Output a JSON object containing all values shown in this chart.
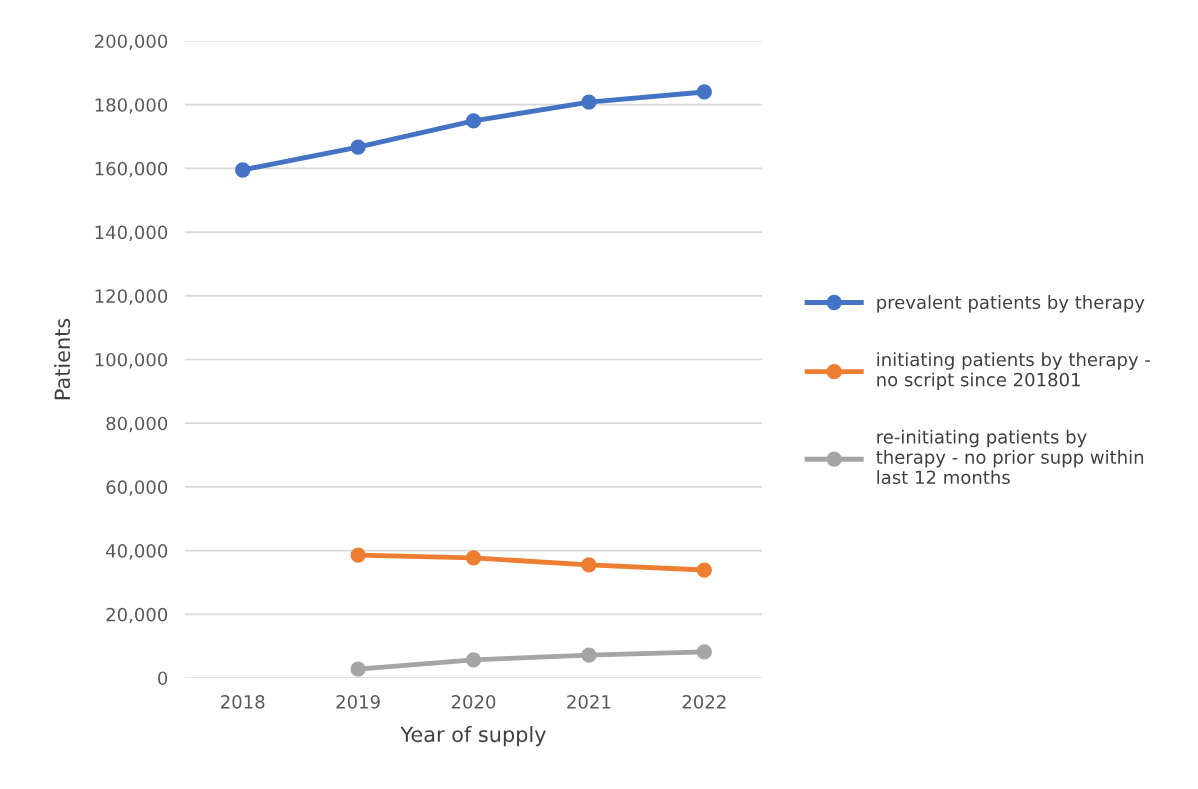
{
  "chart_data": {
    "type": "line",
    "xlabel": "Year of supply",
    "ylabel": "Patients",
    "categories": [
      "2018",
      "2019",
      "2020",
      "2021",
      "2022"
    ],
    "series": [
      {
        "name": "prevalent patients by therapy",
        "color": "#4472c4",
        "values": [
          159500,
          166700,
          174900,
          180800,
          184000
        ]
      },
      {
        "name": "initiating patients by therapy - no script since 201801",
        "color": "#ed7d31",
        "values": [
          null,
          38600,
          37700,
          35500,
          33900
        ]
      },
      {
        "name": "re-initiating patients by therapy - no prior supp within last 12 months",
        "color": "#a5a5a5",
        "values": [
          null,
          2800,
          5700,
          7200,
          8200
        ]
      }
    ],
    "ylim": [
      0,
      200000
    ],
    "yticks": [
      {
        "value": 0,
        "label": "0"
      },
      {
        "value": 20000,
        "label": "20,000"
      },
      {
        "value": 40000,
        "label": "40,000"
      },
      {
        "value": 60000,
        "label": "60,000"
      },
      {
        "value": 80000,
        "label": "80,000"
      },
      {
        "value": 100000,
        "label": "100,000"
      },
      {
        "value": 120000,
        "label": "120,000"
      },
      {
        "value": 140000,
        "label": "140,000"
      },
      {
        "value": 160000,
        "label": "160,000"
      },
      {
        "value": 180000,
        "label": "180,000"
      },
      {
        "value": 200000,
        "label": "200,000"
      }
    ],
    "grid": "y",
    "legend": "right",
    "marker": "circle",
    "line_style": "solid"
  }
}
